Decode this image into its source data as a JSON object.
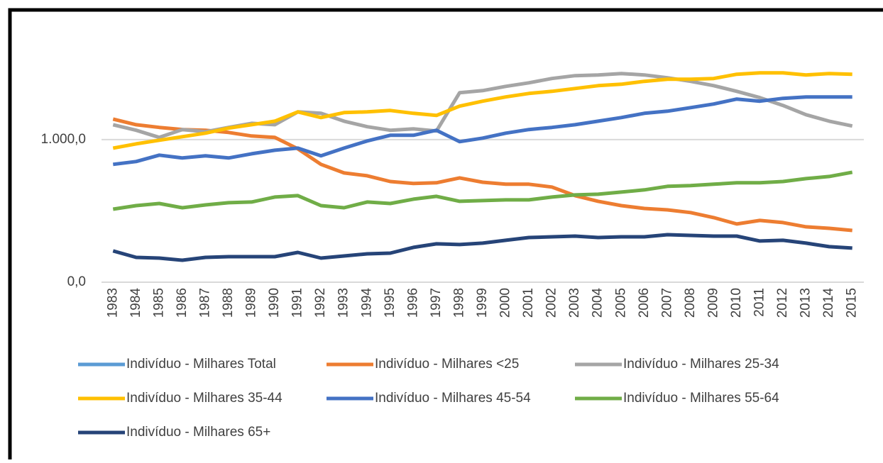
{
  "chart_data": {
    "type": "line",
    "categories": [
      "1983",
      "1984",
      "1985",
      "1986",
      "1987",
      "1988",
      "1989",
      "1990",
      "1991",
      "1992",
      "1993",
      "1994",
      "1995",
      "1996",
      "1997",
      "1998",
      "1999",
      "2000",
      "2001",
      "2002",
      "2003",
      "2004",
      "2005",
      "2006",
      "2007",
      "2008",
      "2009",
      "2010",
      "2011",
      "2012",
      "2013",
      "2014",
      "2015"
    ],
    "ylim": [
      0,
      1700
    ],
    "yticks": [
      {
        "value": 0,
        "label": "0,0"
      },
      {
        "value": 1000,
        "label": "1.000,0"
      }
    ],
    "grid": true,
    "legend": "bottom",
    "series": [
      {
        "name": "Indivíduo - Milhares Total",
        "color": "#5b9bd5",
        "values": [
          null,
          null,
          null,
          null,
          null,
          null,
          null,
          null,
          null,
          null,
          null,
          null,
          null,
          null,
          null,
          null,
          null,
          null,
          null,
          null,
          null,
          null,
          null,
          null,
          null,
          null,
          null,
          null,
          null,
          null,
          null,
          null,
          null
        ]
      },
      {
        "name": "Indivíduo - Milhares <25",
        "color": "#ed7d31",
        "values": [
          1144,
          1104,
          1085,
          1070,
          1065,
          1050,
          1025,
          1015,
          935,
          826,
          766,
          746,
          706,
          692,
          697,
          731,
          701,
          687,
          687,
          667,
          607,
          567,
          537,
          517,
          507,
          488,
          453,
          408,
          433,
          418,
          388,
          378,
          363
        ]
      },
      {
        "name": "Indivíduo - Milhares 25-34",
        "color": "#a5a5a5",
        "values": [
          1104,
          1065,
          1015,
          1070,
          1055,
          1085,
          1114,
          1104,
          1194,
          1184,
          1129,
          1090,
          1065,
          1075,
          1060,
          1328,
          1343,
          1373,
          1398,
          1428,
          1448,
          1453,
          1463,
          1453,
          1433,
          1408,
          1378,
          1338,
          1294,
          1239,
          1174,
          1129,
          1095
        ]
      },
      {
        "name": "Indivíduo - Milhares 35-44",
        "color": "#ffc000",
        "values": [
          940,
          970,
          995,
          1020,
          1045,
          1080,
          1104,
          1129,
          1194,
          1154,
          1189,
          1194,
          1204,
          1184,
          1169,
          1234,
          1269,
          1299,
          1323,
          1338,
          1358,
          1378,
          1388,
          1408,
          1423,
          1423,
          1428,
          1458,
          1468,
          1468,
          1453,
          1463,
          1458
        ]
      },
      {
        "name": "Indivíduo - Milhares 45-54",
        "color": "#4472c4",
        "values": [
          826,
          846,
          891,
          871,
          886,
          871,
          900,
          925,
          940,
          886,
          940,
          990,
          1030,
          1030,
          1065,
          985,
          1010,
          1045,
          1070,
          1085,
          1104,
          1129,
          1154,
          1184,
          1199,
          1224,
          1249,
          1284,
          1269,
          1289,
          1299,
          1299,
          1299
        ]
      },
      {
        "name": "Indivíduo - Milhares 55-64",
        "color": "#70ad47",
        "values": [
          512,
          537,
          552,
          522,
          542,
          557,
          562,
          597,
          607,
          537,
          522,
          562,
          552,
          582,
          602,
          567,
          572,
          577,
          577,
          597,
          612,
          617,
          632,
          647,
          672,
          677,
          687,
          697,
          697,
          706,
          726,
          741,
          771
        ]
      },
      {
        "name": "Indivíduo - Milhares 65+",
        "color": "#264478",
        "values": [
          219,
          174,
          169,
          154,
          174,
          179,
          179,
          179,
          209,
          169,
          184,
          199,
          204,
          244,
          269,
          264,
          274,
          294,
          313,
          318,
          323,
          313,
          318,
          318,
          333,
          328,
          323,
          323,
          289,
          294,
          274,
          249,
          239
        ]
      }
    ]
  }
}
